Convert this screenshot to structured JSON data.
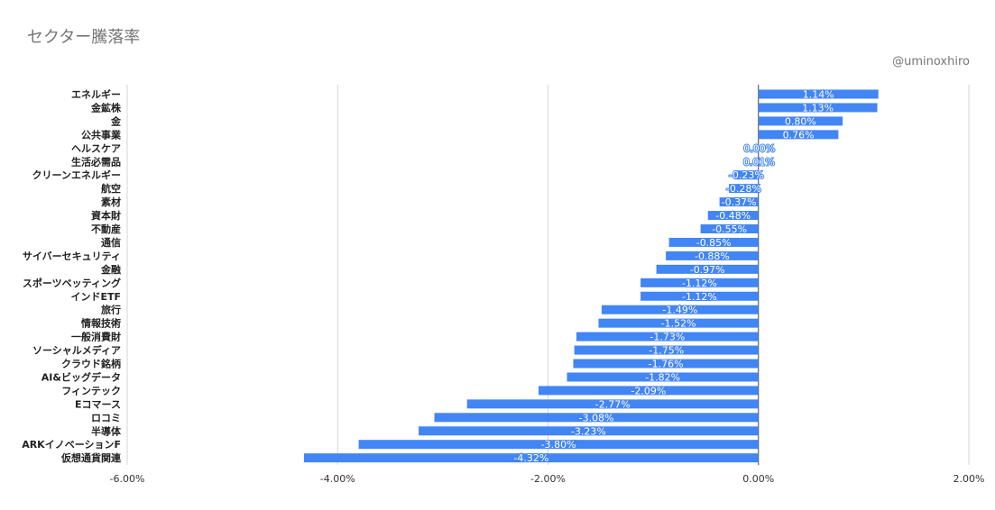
{
  "chart_data": {
    "type": "bar",
    "orientation": "horizontal",
    "title": "セクター騰落率",
    "credit": "@uminoxhiro",
    "categories": [
      "エネルギー",
      "金鉱株",
      "金",
      "公共事業",
      "ヘルスケア",
      "生活必需品",
      "クリーンエネルギー",
      "航空",
      "素材",
      "資本財",
      "不動産",
      "通信",
      "サイバーセキュリティ",
      "金融",
      "スポーツベッティング",
      "インドETF",
      "旅行",
      "情報技術",
      "一般消費財",
      "ソーシャルメディア",
      "クラウド銘柄",
      "AI&ビッグデータ",
      "フィンテック",
      "Eコマース",
      "ロコミ",
      "半導体",
      "ARKイノベーションF",
      "仮想通貨関連"
    ],
    "values": [
      1.14,
      1.13,
      0.8,
      0.76,
      0.0,
      0.01,
      -0.23,
      -0.28,
      -0.37,
      -0.48,
      -0.55,
      -0.85,
      -0.88,
      -0.97,
      -1.12,
      -1.12,
      -1.49,
      -1.52,
      -1.73,
      -1.75,
      -1.76,
      -1.82,
      -2.09,
      -2.77,
      -3.08,
      -3.23,
      -3.8,
      -4.32
    ],
    "data_labels": [
      "1.14%",
      "1.13%",
      "0.80%",
      "0.76%",
      "0.00%",
      "0.01%",
      "-0.23%",
      "-0.28%",
      "-0.37%",
      "-0.48%",
      "-0.55%",
      "-0.85%",
      "-0.88%",
      "-0.97%",
      "-1.12%",
      "-1.12%",
      "-1.49%",
      "-1.52%",
      "-1.73%",
      "-1.75%",
      "-1.76%",
      "-1.82%",
      "-2.09%",
      "-2.77%",
      "-3.08%",
      "-3.23%",
      "-3.80%",
      "-4.32%"
    ],
    "x_ticks": [
      -6,
      -4,
      -2,
      0,
      2
    ],
    "x_tick_labels": [
      "-6.00%",
      "-4.00%",
      "-2.00%",
      "0.00%",
      "2.00%"
    ],
    "xlim": [
      -6,
      2
    ],
    "grid": true,
    "bar_color": "#4285f4",
    "grid_color": "#cccccc",
    "label_color": "#ffffff"
  }
}
